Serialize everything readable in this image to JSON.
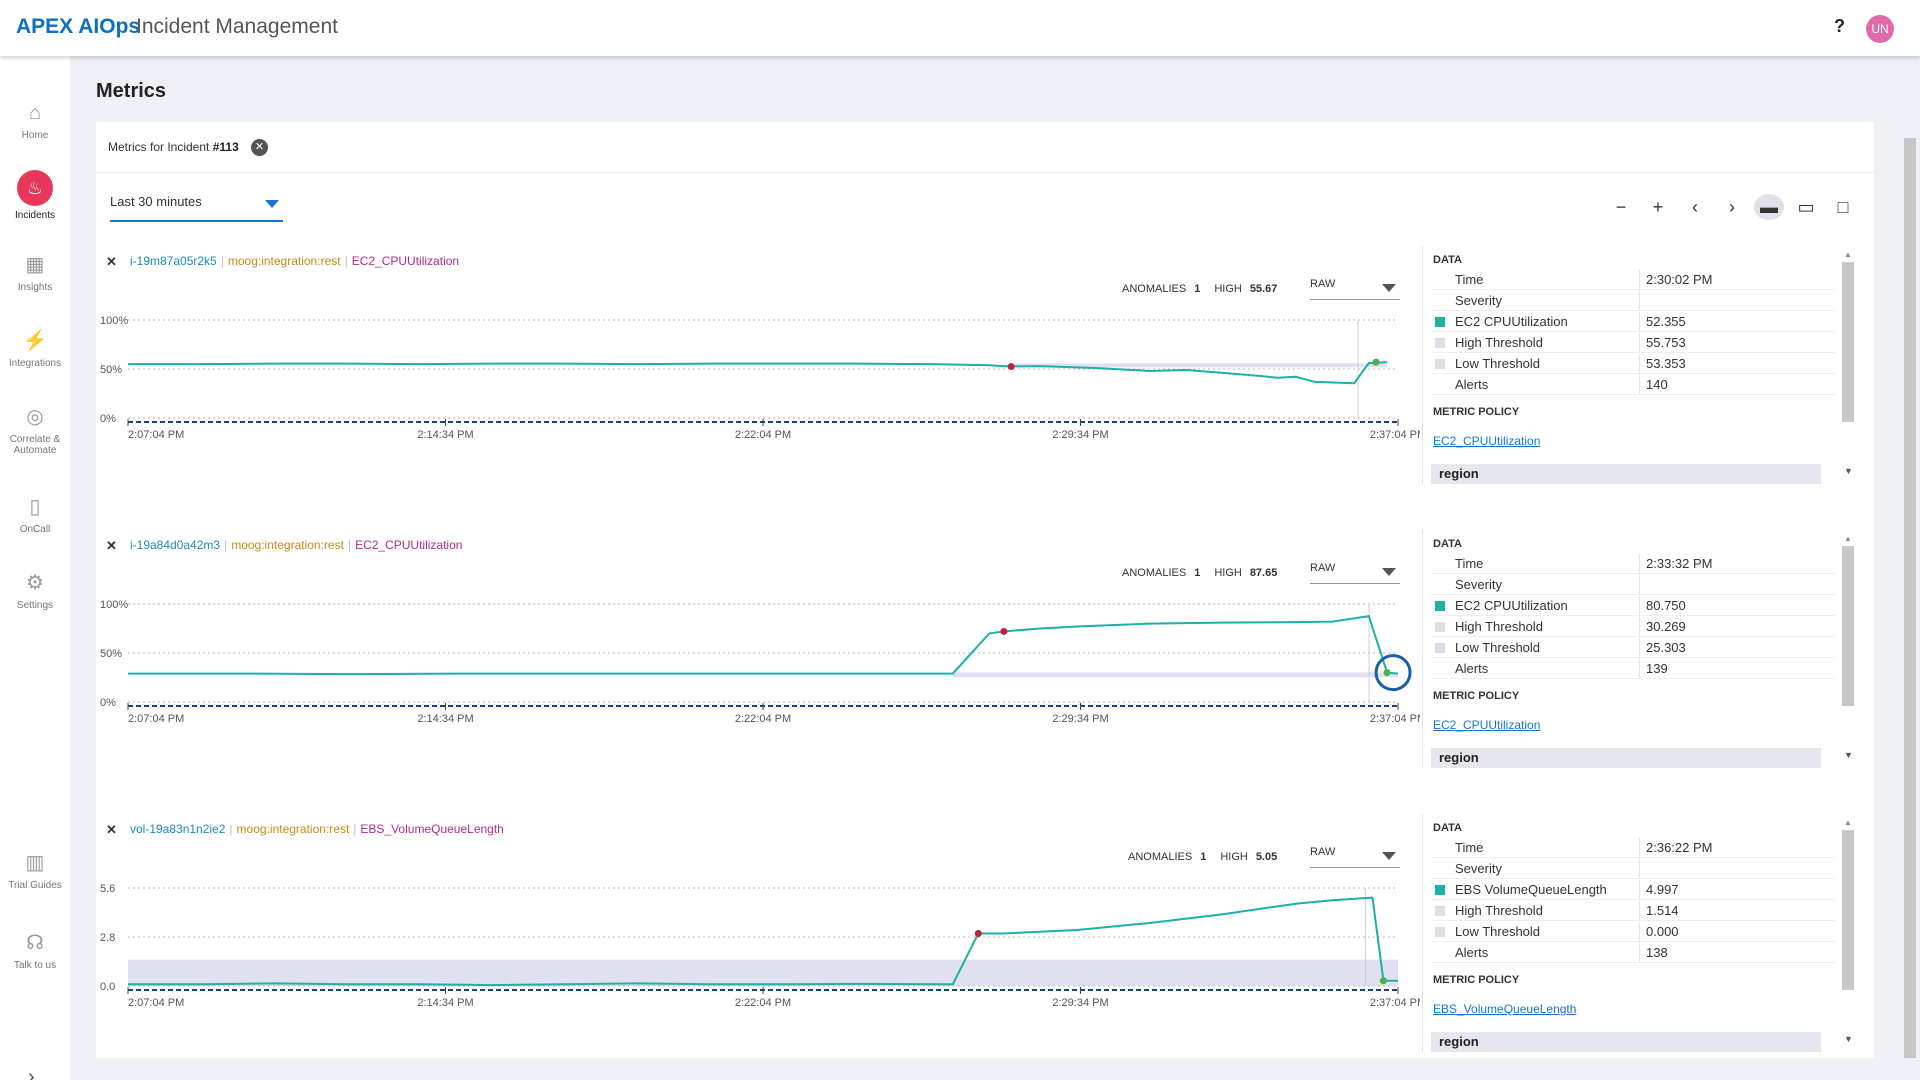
{
  "header": {
    "brand": "APEX AIOps",
    "title": "Incident Management",
    "help": "?",
    "user_initials": "UN"
  },
  "sidebar": {
    "items": [
      {
        "label": "Home",
        "icon": "home-icon"
      },
      {
        "label": "Incidents",
        "icon": "flame-icon",
        "active": true
      },
      {
        "label": "Insights",
        "icon": "grid-icon"
      },
      {
        "label": "Integrations",
        "icon": "plug-icon"
      },
      {
        "label": "Correlate & Automate",
        "icon": "target-icon"
      },
      {
        "label": "OnCall",
        "icon": "phone-icon"
      },
      {
        "label": "Settings",
        "icon": "gear-icon"
      },
      {
        "label": "Trial Guides",
        "icon": "books-icon"
      },
      {
        "label": "Talk to us",
        "icon": "headset-icon"
      }
    ]
  },
  "page": {
    "title": "Metrics",
    "incident_prefix": "Metrics for Incident",
    "incident_number": "#113"
  },
  "time_range": {
    "selected": "Last 30 minutes"
  },
  "toolbar": {
    "zoom_out": "−",
    "zoom_in": "+",
    "prev": "‹",
    "next": "›"
  },
  "panels": [
    {
      "source": "i-19m87a05r2k5",
      "manager": "moog:integration:rest",
      "metric": "EC2_CPUUtilization",
      "anomalies_label": "ANOMALIES",
      "anomalies": "1",
      "high_label": "HIGH",
      "high": "55.67",
      "mode": "RAW",
      "data": {
        "header": "DATA",
        "rows": [
          {
            "key": "Time",
            "value": "2:30:02 PM"
          },
          {
            "key": "Severity",
            "value": ""
          },
          {
            "key": "EC2 CPUUtilization",
            "value": "52.355",
            "swatch": "#1db0a6"
          },
          {
            "key": "High Threshold",
            "value": "55.753",
            "swatch": "#dcdde6"
          },
          {
            "key": "Low Threshold",
            "value": "53.353",
            "swatch": "#dcdde6"
          },
          {
            "key": "Alerts",
            "value": "140"
          }
        ],
        "policy_label": "METRIC POLICY",
        "policy_link": "EC2_CPUUtilization",
        "region": "region"
      }
    },
    {
      "source": "i-19a84d0a42m3",
      "manager": "moog:integration:rest",
      "metric": "EC2_CPUUtilization",
      "anomalies_label": "ANOMALIES",
      "anomalies": "1",
      "high_label": "HIGH",
      "high": "87.65",
      "mode": "RAW",
      "data": {
        "header": "DATA",
        "rows": [
          {
            "key": "Time",
            "value": "2:33:32 PM"
          },
          {
            "key": "Severity",
            "value": ""
          },
          {
            "key": "EC2 CPUUtilization",
            "value": "80.750",
            "swatch": "#1db0a6"
          },
          {
            "key": "High Threshold",
            "value": "30.269",
            "swatch": "#dcdde6"
          },
          {
            "key": "Low Threshold",
            "value": "25.303",
            "swatch": "#dcdde6"
          },
          {
            "key": "Alerts",
            "value": "139"
          }
        ],
        "policy_label": "METRIC POLICY",
        "policy_link": "EC2_CPUUtilization",
        "region": "region"
      }
    },
    {
      "source": "vol-19a83n1n2ie2",
      "manager": "moog:integration:rest",
      "metric": "EBS_VolumeQueueLength",
      "anomalies_label": "ANOMALIES",
      "anomalies": "1",
      "high_label": "HIGH",
      "high": "5.05",
      "mode": "RAW",
      "data": {
        "header": "DATA",
        "rows": [
          {
            "key": "Time",
            "value": "2:36:22 PM"
          },
          {
            "key": "Severity",
            "value": ""
          },
          {
            "key": "EBS VolumeQueueLength",
            "value": "4.997",
            "swatch": "#1db0a6"
          },
          {
            "key": "High Threshold",
            "value": "1.514",
            "swatch": "#dcdde6"
          },
          {
            "key": "Low Threshold",
            "value": "0.000",
            "swatch": "#dcdde6"
          },
          {
            "key": "Alerts",
            "value": "138"
          }
        ],
        "policy_label": "METRIC POLICY",
        "policy_link": "EBS_VolumeQueueLength",
        "region": "region"
      }
    }
  ],
  "chart_data": [
    {
      "type": "line",
      "x_tick_labels": [
        "2:07:04 PM",
        "2:14:34 PM",
        "2:22:04 PM",
        "2:29:34 PM",
        "2:37:04 PM"
      ],
      "y_tick_labels": [
        "100%",
        "50%",
        "0%"
      ],
      "ylim": [
        0,
        100
      ],
      "series": [
        {
          "values": [
            [
              0,
              55
            ],
            [
              2,
              55
            ],
            [
              4,
              55.5
            ],
            [
              6,
              55.5
            ],
            [
              8,
              55
            ],
            [
              10,
              55.5
            ],
            [
              12,
              55.5
            ],
            [
              14,
              55
            ],
            [
              16,
              55.5
            ],
            [
              18,
              55.5
            ],
            [
              20,
              55.5
            ],
            [
              22,
              55
            ],
            [
              23.5,
              54
            ],
            [
              24.2,
              52.5
            ],
            [
              25,
              53
            ],
            [
              26.5,
              51
            ],
            [
              28,
              48
            ],
            [
              29,
              49
            ],
            [
              30,
              46
            ],
            [
              31,
              43
            ],
            [
              31.5,
              41
            ],
            [
              32,
              42
            ],
            [
              32.5,
              37
            ],
            [
              33.2,
              36
            ],
            [
              33.6,
              35.5
            ],
            [
              34,
              56
            ],
            [
              34.5,
              57
            ]
          ],
          "color": "#1db0a6"
        }
      ],
      "band": {
        "low": 53.35,
        "high": 55.75,
        "from": 24.2,
        "to": 34.5
      },
      "anomaly": {
        "x": 24.2,
        "y": 52.5
      },
      "current": {
        "x": 34.2,
        "y": 57
      }
    },
    {
      "type": "line",
      "x_tick_labels": [
        "2:07:04 PM",
        "2:14:34 PM",
        "2:22:04 PM",
        "2:29:34 PM",
        "2:37:04 PM"
      ],
      "y_tick_labels": [
        "100%",
        "50%",
        "0%"
      ],
      "ylim": [
        0,
        100
      ],
      "series": [
        {
          "values": [
            [
              0,
              29
            ],
            [
              3,
              29
            ],
            [
              6,
              28.5
            ],
            [
              9,
              29
            ],
            [
              12,
              29
            ],
            [
              15,
              29
            ],
            [
              18,
              29
            ],
            [
              21,
              29
            ],
            [
              22.6,
              29
            ],
            [
              23.6,
              70
            ],
            [
              24,
              72
            ],
            [
              25,
              75
            ],
            [
              26,
              77
            ],
            [
              28,
              80
            ],
            [
              30,
              81
            ],
            [
              32,
              81.5
            ],
            [
              33,
              82
            ],
            [
              34,
              87.65
            ],
            [
              34.5,
              30
            ],
            [
              34.8,
              29
            ]
          ],
          "color": "#1db0a6"
        }
      ],
      "band": {
        "low": 25.3,
        "high": 30.27,
        "from": 22.6,
        "to": 34.8
      },
      "anomaly": {
        "x": 24,
        "y": 72
      },
      "current": {
        "x": 34.5,
        "y": 30
      }
    },
    {
      "type": "line",
      "x_tick_labels": [
        "2:07:04 PM",
        "2:14:34 PM",
        "2:22:04 PM",
        "2:29:34 PM",
        "2:37:04 PM"
      ],
      "y_tick_labels": [
        "5.6",
        "2.8",
        "0.0"
      ],
      "ylim": [
        0,
        5.6
      ],
      "series": [
        {
          "values": [
            [
              0,
              0.1
            ],
            [
              2,
              0.1
            ],
            [
              4,
              0.15
            ],
            [
              6,
              0.1
            ],
            [
              8,
              0.1
            ],
            [
              10,
              0.05
            ],
            [
              12,
              0.1
            ],
            [
              14,
              0.15
            ],
            [
              16,
              0.1
            ],
            [
              18,
              0.1
            ],
            [
              20,
              0.12
            ],
            [
              22.6,
              0.1
            ],
            [
              23.3,
              3.0
            ],
            [
              24,
              3.0
            ],
            [
              26,
              3.2
            ],
            [
              28,
              3.6
            ],
            [
              30,
              4.1
            ],
            [
              32,
              4.7
            ],
            [
              33,
              4.9
            ],
            [
              34.1,
              5.05
            ],
            [
              34.4,
              0.3
            ],
            [
              34.8,
              0.3
            ]
          ],
          "color": "#1db0a6"
        }
      ],
      "band": {
        "low": 0.0,
        "high": 1.51,
        "from": 0,
        "to": 34.8
      },
      "anomaly": {
        "x": 23.3,
        "y": 3.0
      },
      "current": {
        "x": 34.4,
        "y": 0.3
      }
    }
  ]
}
